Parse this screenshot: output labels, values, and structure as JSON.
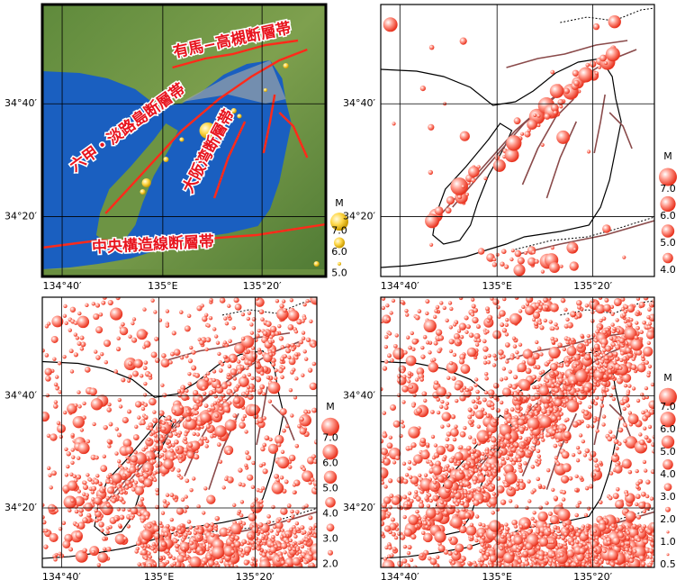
{
  "panels": [
    {
      "lat_labels": [
        "34°40′",
        "34°20′"
      ],
      "lon_labels": [
        "134°40′",
        "135°E",
        "135°20′"
      ],
      "fault_labels": [
        "有馬−高槻断層帯",
        "六甲・淡路島断層帯",
        "大阪湾断層帯",
        "中央構造線断層帯"
      ],
      "legend": {
        "title": "M",
        "labels": [
          "7.0",
          "6.0",
          "5.0"
        ]
      }
    },
    {
      "lat_labels": [
        "34°40′",
        "34°20′"
      ],
      "lon_labels": [
        "134°40′",
        "135°E",
        "135°20′"
      ],
      "legend": {
        "title": "M",
        "labels": [
          "7.0",
          "6.0",
          "5.0",
          "4.0"
        ]
      }
    },
    {
      "lat_labels": [
        "34°40′",
        "34°20′"
      ],
      "lon_labels": [
        "134°40′",
        "135°E",
        "135°20′"
      ],
      "legend": {
        "title": "M",
        "labels": [
          "7.0",
          "6.0",
          "5.0",
          "4.0",
          "3.0",
          "2.0"
        ]
      }
    },
    {
      "lat_labels": [
        "34°40′",
        "34°20′"
      ],
      "lon_labels": [
        "134°40′",
        "135°E",
        "135°20′"
      ],
      "legend": {
        "title": "M",
        "labels": [
          "7.0",
          "6.0",
          "5.0",
          "4.0",
          "3.0",
          "2.0",
          "1.0",
          "0.5"
        ]
      }
    }
  ]
}
